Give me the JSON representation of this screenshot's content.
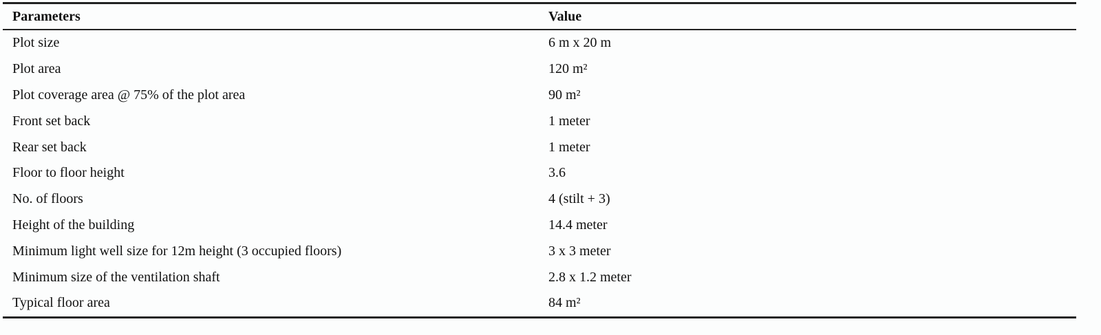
{
  "table": {
    "header": [
      "Parameters",
      "Value"
    ],
    "rows": [
      [
        "Plot size",
        "6 m x 20 m"
      ],
      [
        "Plot area",
        "120 m²"
      ],
      [
        "Plot coverage area @ 75% of the plot area",
        "90 m²"
      ],
      [
        "Front set back",
        "1 meter"
      ],
      [
        "Rear set back",
        "1 meter"
      ],
      [
        "Floor to floor height",
        "3.6"
      ],
      [
        "No. of floors",
        "4 (stilt + 3)"
      ],
      [
        "Height of the building",
        "14.4 meter"
      ],
      [
        "Minimum light well size for 12m height (3 occupied floors)",
        "3 x 3 meter"
      ],
      [
        "Minimum size of the ventilation shaft",
        "2.8 x 1.2 meter"
      ],
      [
        "Typical floor area",
        "84 m²"
      ]
    ]
  }
}
